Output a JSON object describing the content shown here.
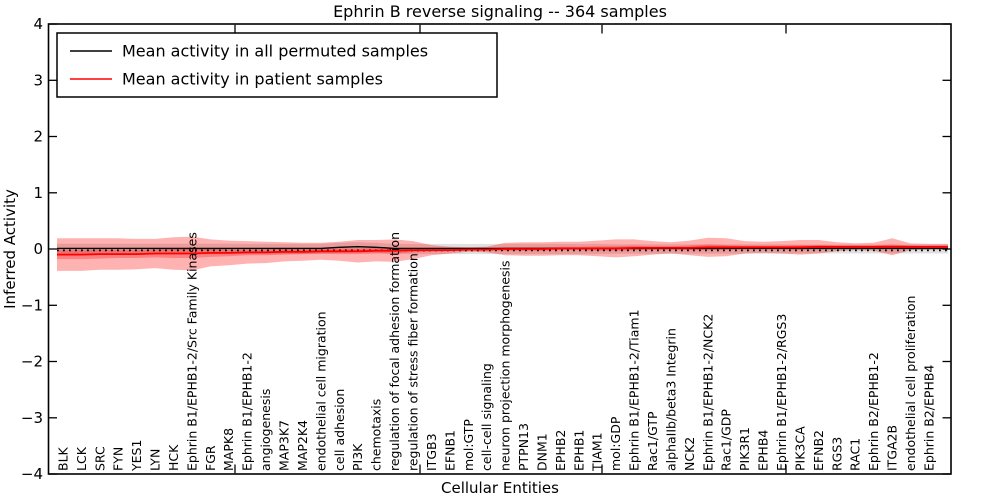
{
  "chart_data": {
    "type": "line",
    "title": "Ephrin B reverse signaling -- 364 samples",
    "xlabel": "Cellular Entities",
    "ylabel": "Inferred Activity",
    "ylim": [
      -4,
      4
    ],
    "yticks": [
      4,
      3,
      2,
      1,
      0,
      -1,
      -2,
      -3,
      -4
    ],
    "yticklabels": [
      "4",
      "3",
      "2",
      "1",
      "0",
      "−1",
      "−2",
      "−3",
      "−4"
    ],
    "grid": false,
    "legend_position": "upper left",
    "categories": [
      "BLK",
      "LCK",
      "SRC",
      "FYN",
      "YES1",
      "LYN",
      "HCK",
      "Ephrin B1/EPHB1-2/Src Family Kinases",
      "FGR",
      "MAPK8",
      "Ephrin B1/EPHB1-2",
      "angiogenesis",
      "MAP3K7",
      "MAP2K4",
      "endothelial cell migration",
      "cell adhesion",
      "PI3K",
      "chemotaxis",
      "regulation of focal adhesion formation",
      "regulation of stress fiber formation",
      "ITGB3",
      "EFNB1",
      "mol:GTP",
      "cell-cell signaling",
      "neuron projection morphogenesis",
      "PTPN13",
      "DNM1",
      "EPHB2",
      "EPHB1",
      "TIAM1",
      "mol:GDP",
      "Ephrin B1/EPHB1-2/Tiam1",
      "Rac1/GTP",
      "alphaIIb/beta3 Integrin",
      "NCK2",
      "Ephrin B1/EPHB1-2/NCK2",
      "Rac1/GDP",
      "PIK3R1",
      "EPHB4",
      "Ephrin B1/EPHB1-2/RGS3",
      "PIK3CA",
      "EFNB2",
      "RGS3",
      "RAC1",
      "Ephrin B2/EPHB1-2",
      "ITGA2B",
      "endothelial cell proliferation",
      "Ephrin B2/EPHB4"
    ],
    "series": [
      {
        "name": "Mean activity in all permuted samples",
        "color": "#000000",
        "values": [
          0,
          0,
          0,
          0,
          0,
          0,
          0,
          0,
          0,
          0,
          0,
          0,
          0,
          0,
          0,
          0.02,
          0.03,
          0.02,
          0,
          0,
          0,
          0,
          0,
          0,
          0,
          0,
          0,
          0,
          0,
          0,
          0,
          0,
          0,
          0,
          0,
          0,
          0,
          0,
          0,
          0,
          0,
          0,
          0,
          0,
          0,
          0,
          0,
          0
        ],
        "band_halfwidth": [
          0.095,
          0.095,
          0.095,
          0.095,
          0.095,
          0.095,
          0.095,
          0.095,
          0.095,
          0.095,
          0.09,
          0.09,
          0.09,
          0.09,
          0.09,
          0.09,
          0.09,
          0.09,
          0.09,
          0.09,
          0.09,
          0.09,
          0.09,
          0.09,
          0.09,
          0.09,
          0.09,
          0.09,
          0.09,
          0.09,
          0.085,
          0.085,
          0.085,
          0.085,
          0.085,
          0.085,
          0.085,
          0.085,
          0.085,
          0.085,
          0.08,
          0.08,
          0.08,
          0.08,
          0.08,
          0.08,
          0.08,
          0.08
        ],
        "band_color": "#000000",
        "band_opacity": 0.12
      },
      {
        "name": "Mean activity in patient samples",
        "color": "#ff0000",
        "values": [
          -0.1,
          -0.1,
          -0.09,
          -0.09,
          -0.09,
          -0.08,
          -0.08,
          -0.08,
          -0.07,
          -0.07,
          -0.06,
          -0.06,
          -0.05,
          -0.05,
          -0.04,
          -0.04,
          -0.04,
          -0.03,
          -0.03,
          -0.02,
          -0.02,
          -0.02,
          -0.01,
          -0.01,
          0.0,
          0.0,
          0.0,
          0.01,
          0.01,
          0.01,
          0.01,
          0.02,
          0.02,
          0.02,
          0.02,
          0.03,
          0.03,
          0.03,
          0.03,
          0.03,
          0.03,
          0.04,
          0.04,
          0.04,
          0.04,
          0.04,
          0.04,
          0.04
        ],
        "band_halfwidth": [
          0.29,
          0.29,
          0.28,
          0.28,
          0.27,
          0.26,
          0.29,
          0.3,
          0.24,
          0.22,
          0.2,
          0.19,
          0.17,
          0.16,
          0.15,
          0.17,
          0.2,
          0.19,
          0.2,
          0.16,
          0.09,
          0.06,
          0.04,
          0.05,
          0.11,
          0.12,
          0.12,
          0.12,
          0.12,
          0.14,
          0.16,
          0.15,
          0.12,
          0.1,
          0.13,
          0.17,
          0.16,
          0.11,
          0.1,
          0.11,
          0.13,
          0.12,
          0.08,
          0.06,
          0.07,
          0.15,
          0.06,
          0.05
        ],
        "inner_band_halfwidth": [
          0.08,
          0.08,
          0.08,
          0.07,
          0.07,
          0.07,
          0.08,
          0.08,
          0.07,
          0.06,
          0.05,
          0.05,
          0.05,
          0.04,
          0.04,
          0.05,
          0.05,
          0.05,
          0.05,
          0.04,
          0.03,
          0.02,
          0.01,
          0.01,
          0.03,
          0.03,
          0.03,
          0.03,
          0.03,
          0.04,
          0.04,
          0.04,
          0.03,
          0.03,
          0.04,
          0.05,
          0.04,
          0.03,
          0.03,
          0.03,
          0.04,
          0.03,
          0.02,
          0.02,
          0.02,
          0.04,
          0.02,
          0.01
        ],
        "band_color": "#ff0000",
        "band_opacity": 0.3,
        "inner_band_opacity": 0.28
      }
    ]
  },
  "legend": {
    "entries": [
      {
        "label": "Mean activity in all permuted samples",
        "color": "#000000"
      },
      {
        "label": "Mean activity in patient samples",
        "color": "#ff0000"
      }
    ]
  }
}
